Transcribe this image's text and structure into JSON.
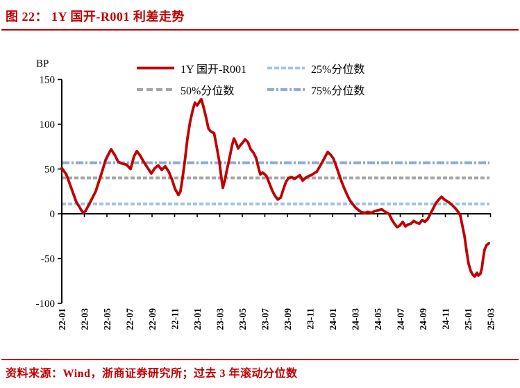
{
  "figure": {
    "title": "图 22：  1Y 国开-R001 利差走势",
    "source_note": "资料来源：Wind，浙商证券研究所；过去 3 年滚动分位数"
  },
  "colors": {
    "accent_red": "#C00000",
    "axis_black": "#000000",
    "p25_blue": "#9DC3E6",
    "p50_gray": "#A6A6A6",
    "p75_blue": "#8FAADC"
  },
  "chart_data": {
    "type": "line",
    "unit_label": "BP",
    "ylim": [
      -100,
      150
    ],
    "y_ticks": [
      150,
      100,
      50,
      0,
      -50,
      -100
    ],
    "x_tick_labels": [
      "22-01",
      "22-03",
      "22-05",
      "22-07",
      "22-09",
      "22-11",
      "23-01",
      "23-03",
      "23-05",
      "23-07",
      "23-09",
      "23-11",
      "24-01",
      "24-03",
      "24-05",
      "24-07",
      "24-09",
      "24-11",
      "25-01",
      "25-03"
    ],
    "x_unit": "months_since_2022-01",
    "grid": false,
    "legend_position": "top-center",
    "percentiles": [
      {
        "label": "25%分位数",
        "value": 11,
        "color": "#9DC3E6",
        "style": "dashed"
      },
      {
        "label": "50%分位数",
        "value": 40,
        "color": "#A6A6A6",
        "style": "dashed"
      },
      {
        "label": "75%分位数",
        "value": 57,
        "color": "#8FAADC",
        "style": "dashdot"
      }
    ],
    "series": [
      {
        "name": "1Y 国开-R001",
        "color": "#C00000",
        "style": "solid",
        "points_month_bp": [
          [
            0,
            51
          ],
          [
            0.4,
            44
          ],
          [
            0.86,
            28
          ],
          [
            1.29,
            13
          ],
          [
            1.55,
            8
          ],
          [
            1.72,
            4
          ],
          [
            1.9,
            1
          ],
          [
            2.1,
            3
          ],
          [
            2.4,
            10
          ],
          [
            3.0,
            25
          ],
          [
            3.57,
            47
          ],
          [
            3.88,
            60
          ],
          [
            4.12,
            66
          ],
          [
            4.37,
            72
          ],
          [
            4.68,
            66
          ],
          [
            5.0,
            58
          ],
          [
            5.35,
            56
          ],
          [
            5.72,
            55
          ],
          [
            6.1,
            50
          ],
          [
            6.4,
            64
          ],
          [
            6.65,
            70
          ],
          [
            6.95,
            65
          ],
          [
            7.26,
            58
          ],
          [
            7.57,
            52
          ],
          [
            7.94,
            45
          ],
          [
            8.25,
            51
          ],
          [
            8.55,
            54
          ],
          [
            8.86,
            49
          ],
          [
            9.17,
            53
          ],
          [
            9.48,
            47
          ],
          [
            9.78,
            38
          ],
          [
            10.03,
            28
          ],
          [
            10.34,
            21
          ],
          [
            10.52,
            25
          ],
          [
            10.7,
            40
          ],
          [
            10.9,
            58
          ],
          [
            11.14,
            84
          ],
          [
            11.38,
            103
          ],
          [
            11.63,
            117
          ],
          [
            11.8,
            124
          ],
          [
            12.0,
            121
          ],
          [
            12.25,
            126
          ],
          [
            12.37,
            128
          ],
          [
            12.55,
            120
          ],
          [
            12.8,
            107
          ],
          [
            13.0,
            95
          ],
          [
            13.2,
            92
          ],
          [
            13.5,
            90
          ],
          [
            13.7,
            77
          ],
          [
            13.97,
            58
          ],
          [
            14.15,
            40
          ],
          [
            14.28,
            29
          ],
          [
            14.46,
            38
          ],
          [
            14.65,
            50
          ],
          [
            14.83,
            60
          ],
          [
            15.1,
            77
          ],
          [
            15.26,
            84
          ],
          [
            15.45,
            79
          ],
          [
            15.63,
            73
          ],
          [
            15.8,
            76
          ],
          [
            16.06,
            80
          ],
          [
            16.25,
            83
          ],
          [
            16.5,
            80
          ],
          [
            16.74,
            72
          ],
          [
            17.0,
            68
          ],
          [
            17.23,
            62
          ],
          [
            17.4,
            53
          ],
          [
            17.6,
            44
          ],
          [
            17.8,
            46
          ],
          [
            18.0,
            44
          ],
          [
            18.15,
            42
          ],
          [
            18.4,
            34
          ],
          [
            18.65,
            26
          ],
          [
            18.9,
            20
          ],
          [
            19.14,
            16
          ],
          [
            19.4,
            18
          ],
          [
            19.63,
            27
          ],
          [
            19.88,
            36
          ],
          [
            20.12,
            40
          ],
          [
            20.37,
            41
          ],
          [
            20.6,
            39
          ],
          [
            20.86,
            41
          ],
          [
            21.1,
            43
          ],
          [
            21.35,
            37
          ],
          [
            21.6,
            40
          ],
          [
            21.85,
            42
          ],
          [
            22.1,
            43
          ],
          [
            22.34,
            45
          ],
          [
            22.6,
            47
          ],
          [
            22.83,
            52
          ],
          [
            23.1,
            58
          ],
          [
            23.32,
            63
          ],
          [
            23.57,
            69
          ],
          [
            23.82,
            66
          ],
          [
            24.06,
            62
          ],
          [
            24.3,
            54
          ],
          [
            24.55,
            45
          ],
          [
            24.8,
            36
          ],
          [
            25.05,
            28
          ],
          [
            25.3,
            21
          ],
          [
            25.54,
            15
          ],
          [
            25.78,
            11
          ],
          [
            26.03,
            7
          ],
          [
            26.3,
            4
          ],
          [
            26.52,
            2
          ],
          [
            26.83,
            1
          ],
          [
            27.14,
            2
          ],
          [
            27.45,
            1
          ],
          [
            27.75,
            3
          ],
          [
            28.06,
            4
          ],
          [
            28.37,
            5
          ],
          [
            28.68,
            2
          ],
          [
            29.0,
            0
          ],
          [
            29.23,
            -6
          ],
          [
            29.48,
            -11
          ],
          [
            29.72,
            -15
          ],
          [
            29.97,
            -13
          ],
          [
            30.22,
            -9
          ],
          [
            30.46,
            -14
          ],
          [
            30.7,
            -12
          ],
          [
            30.95,
            -11
          ],
          [
            31.2,
            -8
          ],
          [
            31.45,
            -10
          ],
          [
            31.7,
            -11
          ],
          [
            31.94,
            -7
          ],
          [
            32.18,
            -9
          ],
          [
            32.43,
            -6
          ],
          [
            32.68,
            0
          ],
          [
            32.92,
            6
          ],
          [
            33.17,
            12
          ],
          [
            33.42,
            16
          ],
          [
            33.66,
            19
          ],
          [
            33.9,
            16
          ],
          [
            34.15,
            14
          ],
          [
            34.4,
            12
          ],
          [
            34.65,
            9
          ],
          [
            34.9,
            6
          ],
          [
            35.14,
            2
          ],
          [
            35.32,
            -2
          ],
          [
            35.5,
            -13
          ],
          [
            35.7,
            -25
          ],
          [
            35.88,
            -42
          ],
          [
            36.06,
            -56
          ],
          [
            36.25,
            -64
          ],
          [
            36.43,
            -68
          ],
          [
            36.6,
            -70
          ],
          [
            36.8,
            -66
          ],
          [
            36.92,
            -69
          ],
          [
            37.1,
            -67
          ],
          [
            37.23,
            -61
          ],
          [
            37.35,
            -50
          ],
          [
            37.48,
            -40
          ],
          [
            37.66,
            -35
          ],
          [
            37.85,
            -33
          ]
        ]
      }
    ]
  }
}
